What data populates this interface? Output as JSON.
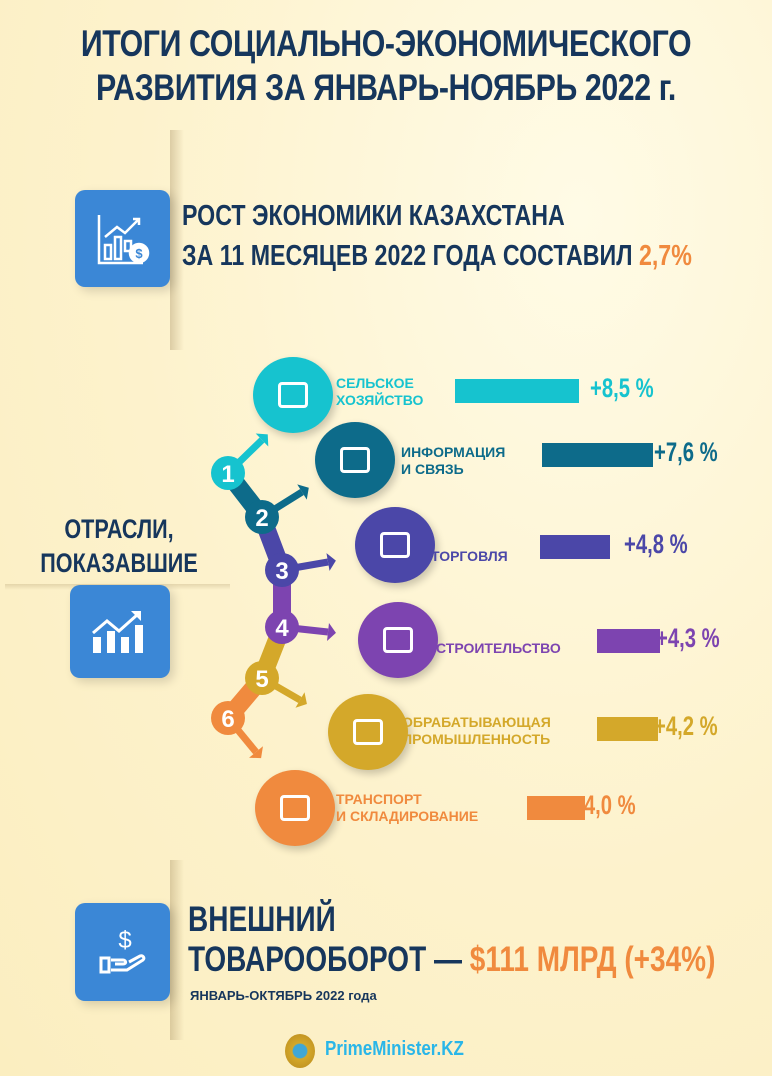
{
  "title": {
    "line1": "ИТОГИ СОЦИАЛЬНО-ЭКОНОМИЧЕСКОГО",
    "line2": "РАЗВИТИЯ ЗА ЯНВАРЬ-НОЯБРЬ 2022 г."
  },
  "growth": {
    "line1": "РОСТ ЭКОНОМИКИ КАЗАХСТАНА",
    "line2": "ЗА 11 МЕСЯЦЕВ 2022 ГОДА СОСТАВИЛ",
    "value": "2,7%",
    "icon": "chart-growth-dollar-icon"
  },
  "sectors_heading": {
    "line1": "ОТРАСЛИ,",
    "line2": "ПОКАЗАВШИЕ РОСТ",
    "icon": "rising-chart-icon"
  },
  "chart_data": {
    "type": "bar",
    "title": "ОТРАСЛИ, ПОКАЗАВШИЕ РОСТ",
    "categories": [
      "СЕЛЬСКОЕ ХОЗЯЙСТВО",
      "ИНФОРМАЦИЯ И СВЯЗЬ",
      "ТОРГОВЛЯ",
      "СТРОИТЕЛЬСТВО",
      "ОБРАБАТЫВАЮЩАЯ ПРОМЫШЛЕННОСТЬ",
      "ТРАНСПОРТ И СКЛАДИРОВАНИЕ"
    ],
    "values": [
      8.5,
      7.6,
      4.8,
      4.3,
      4.2,
      4.0
    ],
    "unit": "%",
    "items": [
      {
        "rank": "1",
        "line1": "СЕЛЬСКОЕ",
        "line2": "ХОЗЯЙСТВО",
        "value_label": "+8,5 %",
        "value": 8.5,
        "color": "#16c3cf",
        "icon": "growth-stairs-icon"
      },
      {
        "rank": "2",
        "line1": "ИНФОРМАЦИЯ",
        "line2": "И СВЯЗЬ",
        "value_label": "+7,6 %",
        "value": 7.6,
        "color": "#0d6b8a",
        "icon": "head-gear-icon"
      },
      {
        "rank": "3",
        "line1": "ТОРГОВЛЯ",
        "line2": "",
        "value_label": "+4,8 %",
        "value": 4.8,
        "color": "#4b47a8",
        "icon": "shopping-cart-icon"
      },
      {
        "rank": "4",
        "line1": "СТРОИТЕЛЬСТВО",
        "line2": "",
        "value_label": "+4,3 %",
        "value": 4.3,
        "color": "#7d44b0",
        "icon": "crane-load-icon"
      },
      {
        "rank": "5",
        "line1": "ОБРАБАТЫВАЮЩАЯ",
        "line2": "ПРОМЫШЛЕННОСТЬ",
        "value_label": "+4,2 %",
        "value": 4.2,
        "color": "#d4a82a",
        "icon": "coins-icon"
      },
      {
        "rank": "6",
        "line1": "ТРАНСПОРТ",
        "line2": "И СКЛАДИРОВАНИЕ",
        "value_label": "+4,0 %",
        "value": 4.0,
        "color": "#f08a3e",
        "icon": "chess-rook-icon"
      }
    ]
  },
  "trade": {
    "line1": "ВНЕШНИЙ",
    "line2": "ТОВАРООБОРОТ —",
    "value": "$111 МЛРД (+34%)",
    "period": "ЯНВАРЬ-ОКТЯБРЬ 2022 года",
    "icon": "hand-dollar-icon"
  },
  "footer": {
    "site": "PrimeMinister.KZ",
    "emblem": "kazakhstan-emblem"
  }
}
